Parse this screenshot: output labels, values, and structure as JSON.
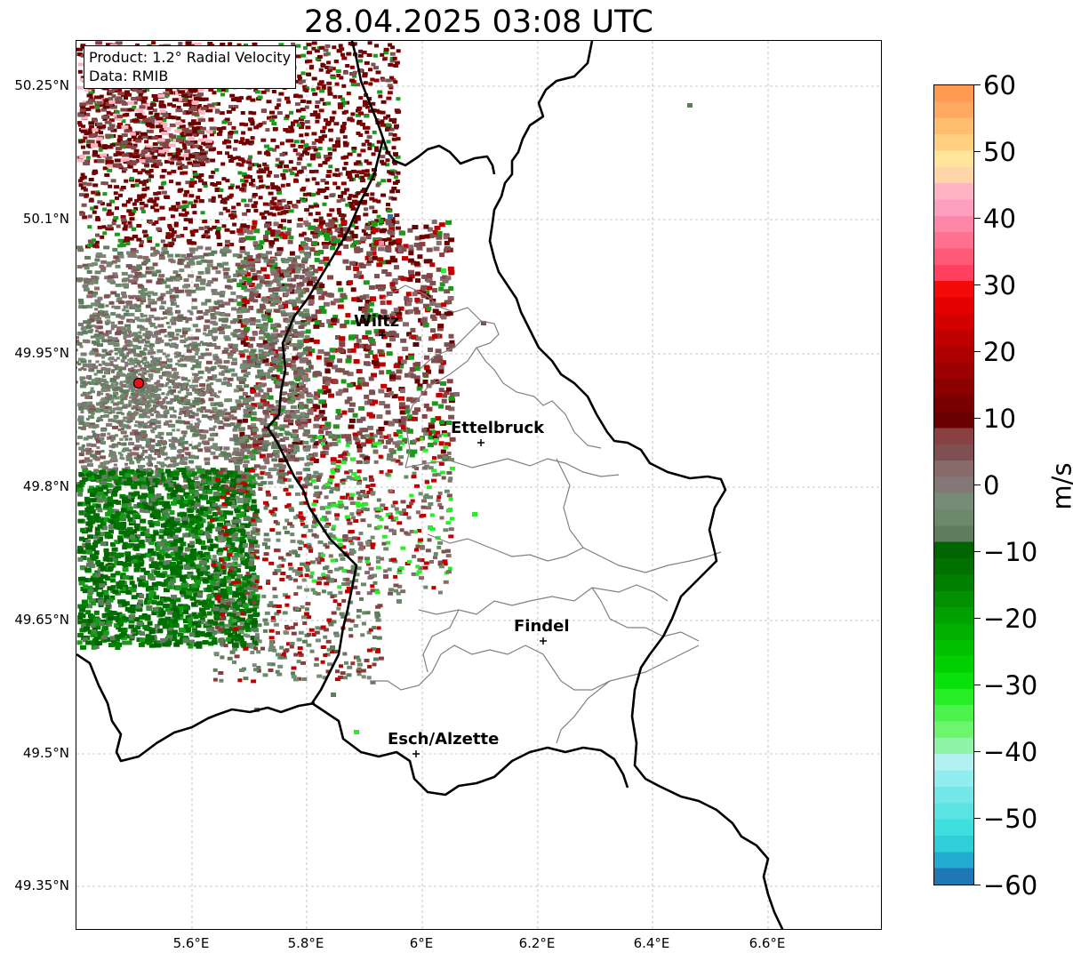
{
  "title": "28.04.2025 03:08 UTC",
  "info_box": {
    "product": "Product: 1.2° Radial Velocity",
    "data": "Data: RMIB"
  },
  "map": {
    "lat_ticks": [
      "50.25°N",
      "50.1°N",
      "49.95°N",
      "49.8°N",
      "49.65°N",
      "49.5°N",
      "49.35°N"
    ],
    "lon_ticks": [
      "5.6°E",
      "5.8°E",
      "6°E",
      "6.2°E",
      "6.4°E",
      "6.6°E"
    ],
    "cities": [
      "Wiltz",
      "Ettelbruck",
      "Findel",
      "Esch/Alzette"
    ],
    "radar_site_color": "#ee1111"
  },
  "colorbar": {
    "unit": "m/s",
    "ticks": [
      "60",
      "50",
      "40",
      "30",
      "20",
      "10",
      "0",
      "−10",
      "−20",
      "−30",
      "−40",
      "−50",
      "−60"
    ],
    "range": [
      -60,
      60
    ],
    "colors_bottom_to_top": [
      "#1f78b4",
      "#23aad0",
      "#2ecfd8",
      "#40dfdf",
      "#5ae3e3",
      "#74e8e8",
      "#90eeee",
      "#b4f2f2",
      "#8ff4a8",
      "#6cf56e",
      "#4cf34c",
      "#28ee28",
      "#0ae00a",
      "#00d000",
      "#00c000",
      "#00b000",
      "#00a000",
      "#009000",
      "#008000",
      "#007000",
      "#006400",
      "#5d7d5d",
      "#6a8a6a",
      "#768c76",
      "#837777",
      "#896a6a",
      "#7e5052",
      "#884040",
      "#6b0000",
      "#7a0000",
      "#8c0000",
      "#9c0000",
      "#ae0000",
      "#c00000",
      "#d40000",
      "#e50000",
      "#f50a0a",
      "#ff4060",
      "#ff5a78",
      "#ff7091",
      "#ff86a8",
      "#ff9fc0",
      "#ffb4c4",
      "#ffd6a8",
      "#ffe69a",
      "#ffd080",
      "#ffbd70",
      "#ffa860",
      "#ff9a50"
    ]
  }
}
